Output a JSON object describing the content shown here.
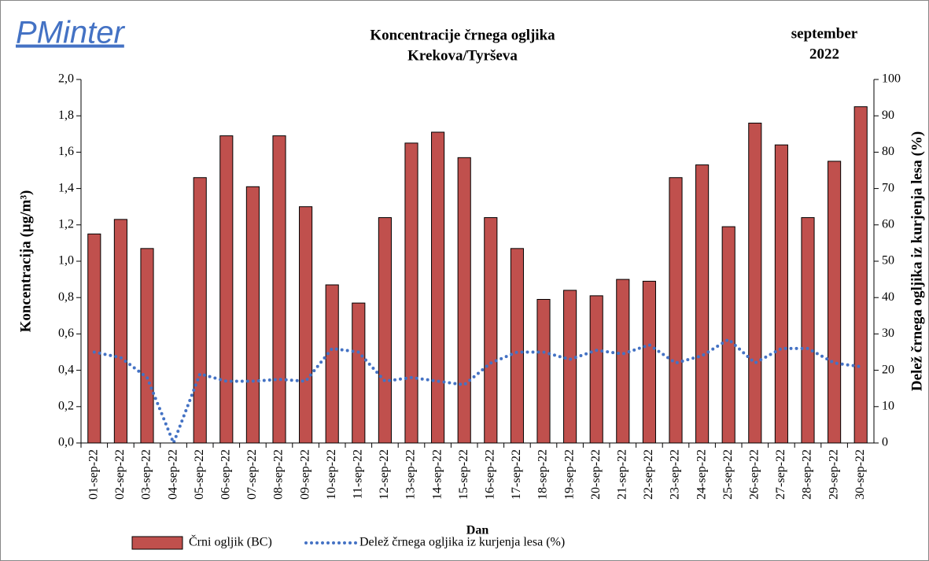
{
  "chart_data": {
    "type": "bar",
    "logo": "PMinter",
    "title": "Koncentracije črnega ogljika",
    "subtitle": "Krekova/Tyrševa",
    "period": [
      "september",
      "2022"
    ],
    "x_label": "Dan",
    "y_label": "Koncentracija  (µg/m³)",
    "y2_label": "Delež črnega ogljika iz kurjenja lesa (%)",
    "categories": [
      "01-sep-22",
      "02-sep-22",
      "03-sep-22",
      "04-sep-22",
      "05-sep-22",
      "06-sep-22",
      "07-sep-22",
      "08-sep-22",
      "09-sep-22",
      "10-sep-22",
      "11-sep-22",
      "12-sep-22",
      "13-sep-22",
      "14-sep-22",
      "15-sep-22",
      "16-sep-22",
      "17-sep-22",
      "18-sep-22",
      "19-sep-22",
      "20-sep-22",
      "21-sep-22",
      "22-sep-22",
      "23-sep-22",
      "24-sep-22",
      "25-sep-22",
      "26-sep-22",
      "27-sep-22",
      "28-sep-22",
      "29-sep-22",
      "30-sep-22"
    ],
    "series": [
      {
        "name": "Črni ogljik (BC)",
        "type": "bar",
        "color": "#c0504d",
        "values": [
          1.15,
          1.23,
          1.07,
          0,
          1.46,
          1.69,
          1.41,
          1.69,
          1.3,
          0.87,
          0.77,
          1.24,
          1.65,
          1.71,
          1.57,
          1.24,
          1.07,
          0.79,
          0.84,
          0.81,
          0.9,
          0.89,
          1.46,
          1.53,
          1.19,
          1.76,
          1.64,
          1.24,
          1.55,
          1.85
        ]
      },
      {
        "name": "Delež črnega ogljika iz kurjenja lesa (%)",
        "type": "line",
        "axis": "y2",
        "color": "#4472c4",
        "values": [
          25,
          23.5,
          18,
          0,
          19,
          17,
          17,
          17.5,
          17,
          26,
          25,
          17,
          18,
          17,
          16,
          22,
          25,
          25,
          23,
          25.5,
          24.5,
          27,
          22,
          24,
          28.5,
          22,
          26,
          26,
          22,
          21
        ]
      }
    ],
    "ylim": [
      0,
      2
    ],
    "yticks": [
      {
        "value": 0,
        "label": "0,0"
      },
      {
        "value": 0.2,
        "label": "0,2"
      },
      {
        "value": 0.4,
        "label": "0,4"
      },
      {
        "value": 0.6,
        "label": "0,6"
      },
      {
        "value": 0.8,
        "label": "0,8"
      },
      {
        "value": 1,
        "label": "1,0"
      },
      {
        "value": 1.2,
        "label": "1,2"
      },
      {
        "value": 1.4,
        "label": "1,4"
      },
      {
        "value": 1.6,
        "label": "1,6"
      },
      {
        "value": 1.8,
        "label": "1,8"
      },
      {
        "value": 2,
        "label": "2,0"
      }
    ],
    "y2lim": [
      0,
      100
    ],
    "y2ticks": [
      0,
      10,
      20,
      30,
      40,
      50,
      60,
      70,
      80,
      90,
      100
    ],
    "grid": false
  }
}
